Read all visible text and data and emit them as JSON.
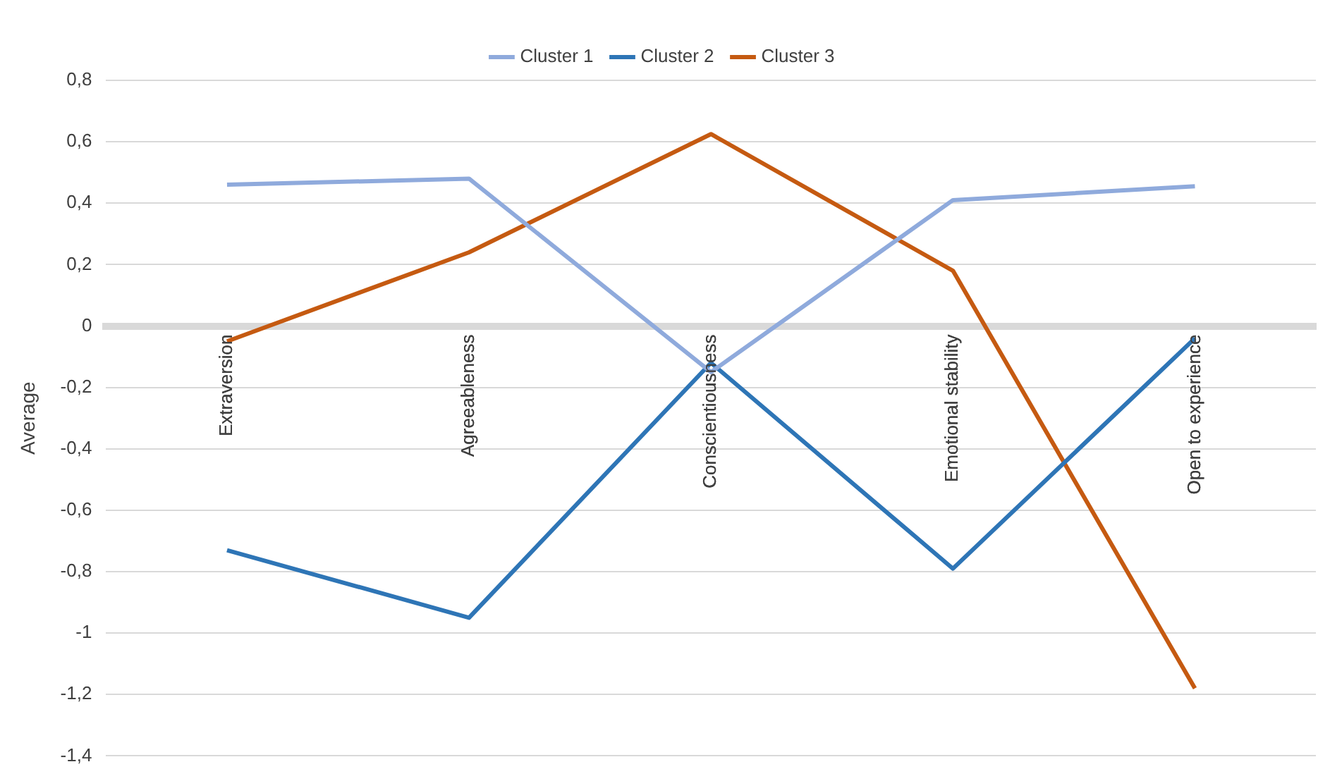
{
  "chart_data": {
    "type": "line",
    "ylabel": "Average",
    "categories": [
      "Extraversion",
      "Agreeableness",
      "Conscientiousness",
      "Emotional stability",
      "Open to experience"
    ],
    "series": [
      {
        "name": "Cluster 1",
        "color": "#8faadc",
        "values": [
          0.46,
          0.48,
          -0.15,
          0.41,
          0.455
        ]
      },
      {
        "name": "Cluster 2",
        "color": "#2e75b6",
        "values": [
          -0.73,
          -0.95,
          -0.12,
          -0.79,
          -0.04
        ]
      },
      {
        "name": "Cluster 3",
        "color": "#c55a11",
        "values": [
          -0.05,
          0.24,
          0.625,
          0.18,
          -1.18
        ]
      }
    ],
    "ylim": [
      -1.4,
      0.8
    ],
    "yticks": [
      {
        "value": -1.4,
        "label": "-1,4"
      },
      {
        "value": -1.2,
        "label": "-1,2"
      },
      {
        "value": -1,
        "label": "-1"
      },
      {
        "value": -0.8,
        "label": "-0,8"
      },
      {
        "value": -0.6,
        "label": "-0,6"
      },
      {
        "value": -0.4,
        "label": "-0,4"
      },
      {
        "value": -0.2,
        "label": "-0,2"
      },
      0,
      {
        "value": 0.2,
        "label": "0,2"
      },
      {
        "value": 0.4,
        "label": "0,4"
      },
      {
        "value": 0.6,
        "label": "0,6"
      },
      {
        "value": 0.8,
        "label": "0,8"
      }
    ],
    "grid": "y",
    "legend": "top",
    "marker": "none",
    "line_style": "solid"
  }
}
